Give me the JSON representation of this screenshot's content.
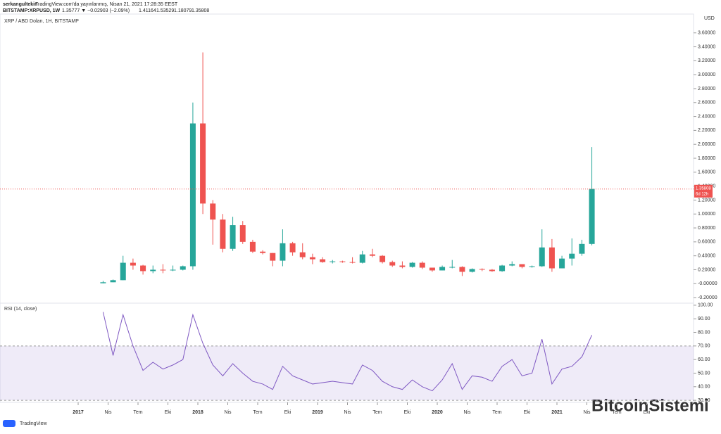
{
  "header": {
    "author": "serkangultekin",
    "published": "TradingView.com'da yayınlanmış, Nisan 21, 2021 17:28:35 EEST",
    "symbol": "BITSTAMP:XRPUSD, 1W",
    "quote": "1.35777 ▼ −0.02903 (−2.09%)",
    "ohlc": [
      "1.41164",
      "1.53529",
      "1.18079",
      "1.35808"
    ]
  },
  "footer": {
    "brand": "TradingView",
    "watermark": "BitcoinSistemi"
  },
  "chart_data": [
    {
      "type": "candlestick",
      "title": "XRP / ABD Doları, 1H, BITSTAMP",
      "y_axis_label": "USD",
      "x": [
        "2017-03",
        "2017-04",
        "2017-05",
        "2017-06",
        "2017-07",
        "2017-08",
        "2017-09",
        "2017-10",
        "2017-11",
        "2017-12",
        "2018-01",
        "2018-02",
        "2018-03",
        "2018-04",
        "2018-05",
        "2018-06",
        "2018-07",
        "2018-08",
        "2018-09",
        "2018-10",
        "2018-11",
        "2018-12",
        "2019-01",
        "2019-02",
        "2019-03",
        "2019-04",
        "2019-05",
        "2019-06",
        "2019-07",
        "2019-08",
        "2019-09",
        "2019-10",
        "2019-11",
        "2019-12",
        "2020-01",
        "2020-02",
        "2020-03",
        "2020-04",
        "2020-05",
        "2020-06",
        "2020-07",
        "2020-08",
        "2020-09",
        "2020-10",
        "2020-11",
        "2020-12",
        "2021-01",
        "2021-02",
        "2021-03",
        "2021-04"
      ],
      "open": [
        0.006,
        0.02,
        0.05,
        0.3,
        0.26,
        0.18,
        0.2,
        0.19,
        0.2,
        0.25,
        2.3,
        1.15,
        0.92,
        0.5,
        0.84,
        0.6,
        0.46,
        0.44,
        0.33,
        0.58,
        0.45,
        0.38,
        0.35,
        0.31,
        0.32,
        0.31,
        0.3,
        0.42,
        0.4,
        0.31,
        0.26,
        0.24,
        0.3,
        0.23,
        0.19,
        0.24,
        0.24,
        0.17,
        0.21,
        0.2,
        0.18,
        0.26,
        0.28,
        0.24,
        0.25,
        0.52,
        0.22,
        0.36,
        0.43,
        0.57
      ],
      "high": [
        0.04,
        0.06,
        0.4,
        0.36,
        0.27,
        0.26,
        0.28,
        0.26,
        0.26,
        2.6,
        3.32,
        1.2,
        1.0,
        0.96,
        0.9,
        0.63,
        0.48,
        0.44,
        0.78,
        0.6,
        0.58,
        0.43,
        0.38,
        0.34,
        0.33,
        0.38,
        0.47,
        0.5,
        0.41,
        0.33,
        0.32,
        0.31,
        0.32,
        0.23,
        0.26,
        0.34,
        0.25,
        0.22,
        0.22,
        0.21,
        0.27,
        0.32,
        0.28,
        0.26,
        0.78,
        0.64,
        0.4,
        0.65,
        0.63,
        1.96
      ],
      "low": [
        0.005,
        0.02,
        0.05,
        0.2,
        0.13,
        0.15,
        0.15,
        0.18,
        0.19,
        0.2,
        1.0,
        0.56,
        0.45,
        0.47,
        0.57,
        0.44,
        0.42,
        0.25,
        0.25,
        0.4,
        0.35,
        0.28,
        0.3,
        0.29,
        0.3,
        0.29,
        0.29,
        0.38,
        0.29,
        0.24,
        0.22,
        0.23,
        0.21,
        0.17,
        0.19,
        0.22,
        0.11,
        0.16,
        0.18,
        0.17,
        0.17,
        0.25,
        0.22,
        0.23,
        0.24,
        0.17,
        0.22,
        0.26,
        0.4,
        0.55
      ],
      "close": [
        0.02,
        0.05,
        0.3,
        0.26,
        0.18,
        0.2,
        0.19,
        0.2,
        0.25,
        2.3,
        1.15,
        0.92,
        0.5,
        0.84,
        0.6,
        0.46,
        0.44,
        0.33,
        0.58,
        0.45,
        0.38,
        0.35,
        0.31,
        0.32,
        0.31,
        0.3,
        0.42,
        0.4,
        0.31,
        0.26,
        0.24,
        0.3,
        0.23,
        0.19,
        0.24,
        0.24,
        0.17,
        0.21,
        0.2,
        0.18,
        0.26,
        0.28,
        0.24,
        0.25,
        0.52,
        0.22,
        0.36,
        0.43,
        0.57,
        1.36
      ],
      "up_color": "#26a69a",
      "down_color": "#ef5350",
      "last_price": 1.35808,
      "countdown": "6d 12h",
      "ylim": [
        -0.28,
        3.87
      ],
      "yticks": [
        {
          "value": -0.2,
          "label": "-0.20000"
        },
        {
          "value": 0,
          "label": "-0.00000"
        },
        {
          "value": 0.2,
          "label": "0.20000"
        },
        {
          "value": 0.4,
          "label": "0.40000"
        },
        {
          "value": 0.6,
          "label": "0.60000"
        },
        {
          "value": 0.8,
          "label": "0.80000"
        },
        {
          "value": 1.0,
          "label": "1.00000"
        },
        {
          "value": 1.2,
          "label": "1.20000"
        },
        {
          "value": 1.4,
          "label": "1.40000"
        },
        {
          "value": 1.6,
          "label": "1.60000"
        },
        {
          "value": 1.8,
          "label": "1.80000"
        },
        {
          "value": 2.0,
          "label": "2.00000"
        },
        {
          "value": 2.2,
          "label": "2.20000"
        },
        {
          "value": 2.4,
          "label": "2.40000"
        },
        {
          "value": 2.6,
          "label": "2.60000"
        },
        {
          "value": 2.8,
          "label": "2.80000"
        },
        {
          "value": 3.0,
          "label": "3.00000"
        },
        {
          "value": 3.2,
          "label": "3.20000"
        },
        {
          "value": 3.4,
          "label": "3.40000"
        },
        {
          "value": 3.6,
          "label": "3.60000"
        }
      ],
      "xticks": [
        {
          "value": "2017-01",
          "label": "2017"
        },
        {
          "value": "2017-04",
          "label": "Nis"
        },
        {
          "value": "2017-07",
          "label": "Tem"
        },
        {
          "value": "2017-10",
          "label": "Eki"
        },
        {
          "value": "2018-01",
          "label": "2018"
        },
        {
          "value": "2018-04",
          "label": "Nis"
        },
        {
          "value": "2018-07",
          "label": "Tem"
        },
        {
          "value": "2018-10",
          "label": "Eki"
        },
        {
          "value": "2019-01",
          "label": "2019"
        },
        {
          "value": "2019-04",
          "label": "Nis"
        },
        {
          "value": "2019-07",
          "label": "Tem"
        },
        {
          "value": "2019-10",
          "label": "Eki"
        },
        {
          "value": "2020-01",
          "label": "2020"
        },
        {
          "value": "2020-04",
          "label": "Nis"
        },
        {
          "value": "2020-07",
          "label": "Tem"
        },
        {
          "value": "2020-10",
          "label": "Eki"
        },
        {
          "value": "2021-01",
          "label": "2021"
        },
        {
          "value": "2021-04",
          "label": "Nis"
        },
        {
          "value": "2021-07",
          "label": "Tem"
        },
        {
          "value": "2021-10",
          "label": "Eki"
        }
      ],
      "grid": false
    },
    {
      "type": "line",
      "title": "RSI (14, close)",
      "color": "#7e57c2",
      "band_color": "rgba(126,87,194,0.12)",
      "x": [
        "2017-03",
        "2017-04",
        "2017-05",
        "2017-06",
        "2017-07",
        "2017-08",
        "2017-09",
        "2017-10",
        "2017-11",
        "2017-12",
        "2018-01",
        "2018-02",
        "2018-03",
        "2018-04",
        "2018-05",
        "2018-06",
        "2018-07",
        "2018-08",
        "2018-09",
        "2018-10",
        "2018-11",
        "2018-12",
        "2019-01",
        "2019-02",
        "2019-03",
        "2019-04",
        "2019-05",
        "2019-06",
        "2019-07",
        "2019-08",
        "2019-09",
        "2019-10",
        "2019-11",
        "2019-12",
        "2020-01",
        "2020-02",
        "2020-03",
        "2020-04",
        "2020-05",
        "2020-06",
        "2020-07",
        "2020-08",
        "2020-09",
        "2020-10",
        "2020-11",
        "2020-12",
        "2021-01",
        "2021-02",
        "2021-03",
        "2021-04"
      ],
      "values": [
        95,
        63,
        93,
        70,
        52,
        58,
        53,
        56,
        60,
        93,
        72,
        56,
        48,
        57,
        50,
        44,
        42,
        38,
        55,
        48,
        45,
        42,
        43,
        44,
        43,
        42,
        56,
        52,
        44,
        40,
        38,
        45,
        40,
        37,
        45,
        57,
        38,
        48,
        47,
        44,
        55,
        60,
        48,
        50,
        75,
        42,
        53,
        55,
        62,
        78
      ],
      "upper_band": 70,
      "lower_band": 30,
      "ylim": [
        28.5,
        101.5
      ],
      "yticks": [
        {
          "value": 30,
          "label": "30.00"
        },
        {
          "value": 40,
          "label": "40.00"
        },
        {
          "value": 50,
          "label": "50.00"
        },
        {
          "value": 60,
          "label": "60.00"
        },
        {
          "value": 70,
          "label": "70.00"
        },
        {
          "value": 80,
          "label": "80.00"
        },
        {
          "value": 90,
          "label": "90.00"
        },
        {
          "value": 100,
          "label": "100.00"
        }
      ]
    }
  ]
}
